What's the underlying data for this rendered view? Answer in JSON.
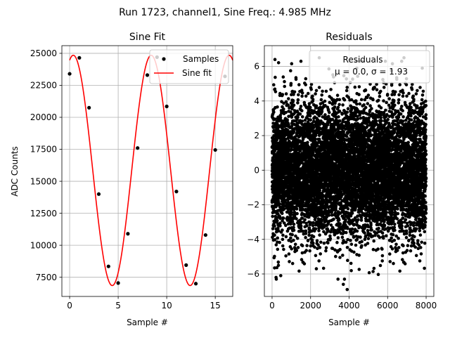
{
  "figure": {
    "suptitle": "Run 1723, channel1, Sine Freq.: 4.985 MHz"
  },
  "chart_data": [
    {
      "type": "scatter+line",
      "title": "Sine Fit",
      "xlabel": "Sample #",
      "ylabel": "ADC Counts",
      "xlim": [
        -0.8,
        16.8
      ],
      "ylim": [
        6000,
        25600
      ],
      "xticks": [
        0,
        5,
        10,
        15
      ],
      "yticks": [
        7500,
        10000,
        12500,
        15000,
        17500,
        20000,
        22500,
        25000
      ],
      "grid": true,
      "legend_position": "top-right",
      "legend": [
        "Samples",
        "Sine fit"
      ],
      "colors": {
        "samples": "#000000",
        "fit": "#ff0000"
      },
      "samples": {
        "name": "Samples",
        "x": [
          0,
          1,
          2,
          3,
          4,
          5,
          6,
          7,
          8,
          9,
          10,
          11,
          12,
          13,
          14,
          15,
          16
        ],
        "y": [
          23400,
          24650,
          20750,
          14000,
          8350,
          7050,
          10900,
          17600,
          23300,
          24700,
          20850,
          14200,
          8450,
          7000,
          10800,
          17450,
          23200
        ]
      },
      "fit": {
        "name": "Sine fit",
        "offset": 15850,
        "amplitude": 9000,
        "period_samples": 8.024,
        "phase_shift_samples": 1.63,
        "x_range": [
          0,
          16.8
        ]
      }
    },
    {
      "type": "scatter",
      "title": "Residuals",
      "xlabel": "Sample #",
      "ylabel": "",
      "xlim": [
        -400,
        8400
      ],
      "ylim": [
        -7.3,
        7.2
      ],
      "xticks": [
        0,
        2000,
        4000,
        6000,
        8000
      ],
      "yticks": [
        -6,
        -4,
        -2,
        0,
        2,
        4,
        6
      ],
      "grid": true,
      "legend_position": "top-right",
      "legend": [
        "Residuals",
        "μ = 0.0, σ = 1.93"
      ],
      "residual_stats": {
        "mean": 0.0,
        "sigma": 1.93
      },
      "colors": {
        "points": "#000000"
      },
      "n_points": 8000,
      "x_range": [
        0,
        8000
      ],
      "highlight_points": [
        {
          "x": 150,
          "y": 6.4
        },
        {
          "x": 2450,
          "y": 6.5
        },
        {
          "x": 6850,
          "y": 6.5
        },
        {
          "x": 220,
          "y": -6.3
        },
        {
          "x": 3700,
          "y": -6.6
        },
        {
          "x": 3900,
          "y": -6.9
        },
        {
          "x": 2300,
          "y": -5.7
        },
        {
          "x": 4400,
          "y": 5.9
        },
        {
          "x": 7800,
          "y": 5.9
        }
      ]
    }
  ]
}
